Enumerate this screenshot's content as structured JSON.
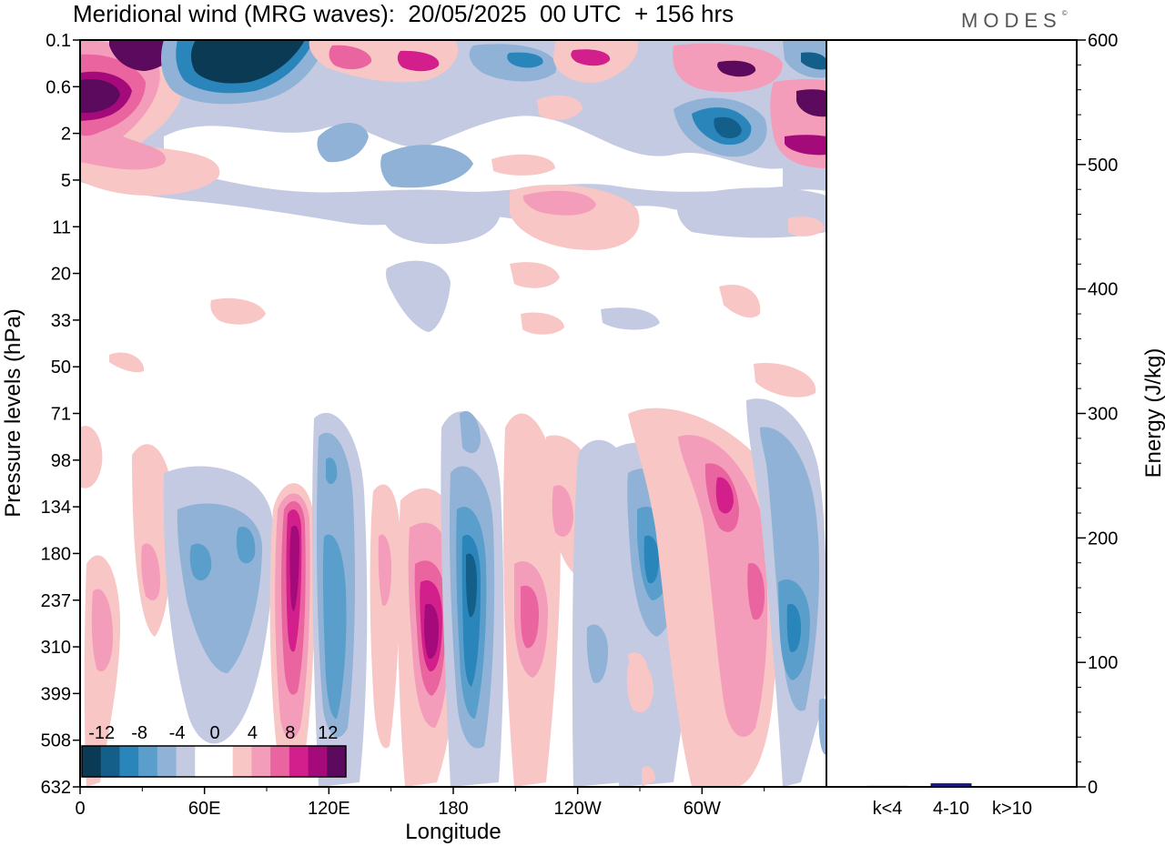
{
  "title": "Meridional wind (MRG waves):  20/05/2025  00 UTC  + 156 hrs",
  "logo": "MODES",
  "logo_mark": "©",
  "chart_data": [
    {
      "type": "heatmap",
      "title": "Meridional wind (MRG waves):  20/05/2025  00 UTC  + 156 hrs",
      "xlabel": "Longitude",
      "ylabel": "Pressure levels (hPa)",
      "x_ticks": [
        "0",
        "60E",
        "120E",
        "180",
        "120W",
        "60W"
      ],
      "x_tick_degrees": [
        0,
        60,
        120,
        180,
        240,
        300
      ],
      "xlim": [
        0,
        360
      ],
      "y_ticks": [
        "0.1",
        "0.6",
        "2",
        "5",
        "11",
        "20",
        "33",
        "50",
        "71",
        "98",
        "134",
        "180",
        "237",
        "310",
        "399",
        "508",
        "632"
      ],
      "colorbar": {
        "labels": [
          "-12",
          "-8",
          "-4",
          "0",
          "4",
          "8",
          "12"
        ],
        "colors": [
          "#0b3a54",
          "#145f8a",
          "#2a85bb",
          "#5a9fcc",
          "#8fb2d6",
          "#c4cae2",
          "#ffffff",
          "#ffffff",
          "#f9c6c6",
          "#f49dba",
          "#ea659f",
          "#d21f8c",
          "#a40a7a",
          "#5c0a5e"
        ]
      },
      "features": [
        {
          "lon": 105,
          "level": "237",
          "sign": "positive",
          "peak": 12
        },
        {
          "lon": 167,
          "level": "310",
          "sign": "positive",
          "peak": 12
        },
        {
          "lon": 188,
          "level": "237",
          "sign": "negative",
          "peak": -10
        },
        {
          "lon": 122,
          "level": "310",
          "sign": "negative",
          "peak": -6
        },
        {
          "lon": 310,
          "level": "237",
          "sign": "positive",
          "peak": 8
        },
        {
          "lon": 346,
          "level": "310",
          "sign": "negative",
          "peak": -10
        },
        {
          "lon": 275,
          "level": "180",
          "sign": "negative",
          "peak": -6
        },
        {
          "lon": 70,
          "level": "0.6",
          "sign": "negative",
          "peak": -12
        },
        {
          "lon": 10,
          "level": "0.6",
          "sign": "positive",
          "peak": 12
        }
      ]
    },
    {
      "type": "bar",
      "categories": [
        "k<4",
        "4-10",
        "k>10"
      ],
      "values": [
        0.5,
        2.5,
        0.3
      ],
      "ylabel": "Energy (J/kg)",
      "y_ticks": [
        "0",
        "100",
        "200",
        "300",
        "400",
        "500",
        "600"
      ],
      "ylim": [
        0,
        600
      ],
      "bar_color": "#1a1a8c"
    }
  ]
}
